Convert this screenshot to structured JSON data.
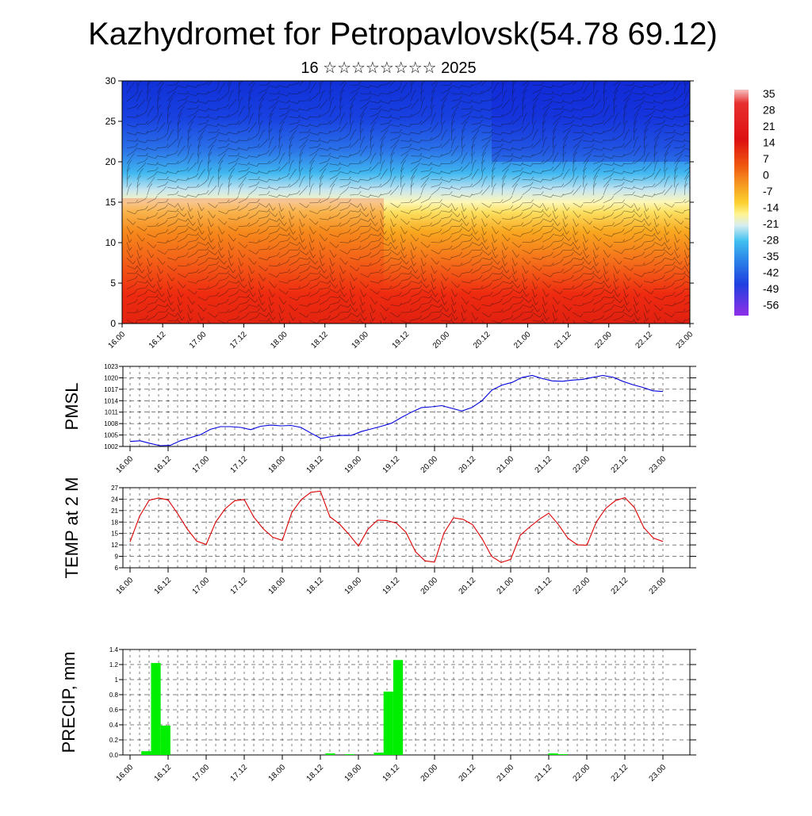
{
  "title": "Kazhydromet for Petropavlovsk(54.78 69.12)",
  "subtitle": "16 ☆☆☆☆☆☆☆☆ 2025",
  "colors": {
    "pmsl_line": "#0000dd",
    "temp_line": "#dd0000",
    "precip_bar": "#00ee00"
  },
  "chart_data": [
    {
      "id": "cross_section",
      "type": "heatmap",
      "title": "",
      "xlabel": "",
      "ylabel": "",
      "x_ticks": [
        "16.00",
        "16.12",
        "17.00",
        "17.12",
        "18.00",
        "18.12",
        "19.00",
        "19.12",
        "20.00",
        "20.12",
        "21.00",
        "21.12",
        "22.00",
        "22.12",
        "23.00"
      ],
      "ylim": [
        0,
        30
      ],
      "y_ticks": [
        0,
        5,
        10,
        15,
        20,
        25,
        30
      ],
      "colorbar": {
        "labels": [
          "35",
          "28",
          "21",
          "14",
          "7",
          "0",
          "-7",
          "-14",
          "-21",
          "-28",
          "-35",
          "-42",
          "-49",
          "-56"
        ],
        "placement": "right"
      },
      "overlay": "wind barbs"
    },
    {
      "id": "pmsl",
      "type": "line",
      "title": "",
      "ylabel": "PMSL",
      "xlabel": "",
      "ylim": [
        1002,
        1023
      ],
      "y_ticks": [
        1002,
        1005,
        1008,
        1011,
        1014,
        1017,
        1020,
        1023
      ],
      "grid": true,
      "x_ticks": [
        "16.00",
        "16.12",
        "17.00",
        "17.12",
        "18.00",
        "18.12",
        "19.00",
        "19.12",
        "20.00",
        "20.12",
        "21.00",
        "21.12",
        "22.00",
        "22.12",
        "23.00"
      ],
      "series": [
        {
          "values": [
            1003.3,
            1003.5,
            1002.8,
            1002.2,
            1002.3,
            1003.5,
            1004.3,
            1005.1,
            1006.5,
            1007.2,
            1007.2,
            1007.0,
            1006.4,
            1007.3,
            1007.6,
            1007.4,
            1007.5,
            1007.0,
            1005.5,
            1004.1,
            1004.6,
            1004.9,
            1004.9,
            1005.9,
            1006.6,
            1007.3,
            1008.1,
            1009.6,
            1011.0,
            1012.2,
            1012.4,
            1012.7,
            1012.0,
            1011.3,
            1012.2,
            1014.0,
            1016.8,
            1018.1,
            1018.8,
            1020.1,
            1020.6,
            1019.8,
            1019.2,
            1019.1,
            1019.4,
            1019.6,
            1020.1,
            1020.6,
            1020.2,
            1019.1,
            1018.2,
            1017.5,
            1016.6,
            1016.4
          ]
        }
      ]
    },
    {
      "id": "temp2m",
      "type": "line",
      "title": "",
      "ylabel": "TEMP at 2 M",
      "xlabel": "",
      "ylim": [
        6,
        27
      ],
      "y_ticks": [
        6,
        9,
        12,
        15,
        18,
        21,
        24,
        27
      ],
      "grid": true,
      "x_ticks": [
        "16.00",
        "16.12",
        "17.00",
        "17.12",
        "18.00",
        "18.12",
        "19.00",
        "19.12",
        "20.00",
        "20.12",
        "21.00",
        "21.12",
        "22.00",
        "22.12",
        "23.00"
      ],
      "series": [
        {
          "values": [
            12.8,
            19.5,
            23.7,
            24.3,
            23.8,
            20.2,
            16.2,
            13.0,
            12.1,
            18.0,
            21.5,
            23.6,
            23.9,
            19.3,
            16.2,
            14.0,
            13.2,
            20.5,
            23.9,
            25.8,
            26.1,
            19.4,
            17.5,
            14.8,
            11.7,
            16.1,
            18.5,
            18.4,
            17.7,
            15.3,
            10.2,
            7.8,
            7.5,
            15.2,
            19.1,
            18.7,
            17.3,
            13.6,
            9.0,
            7.4,
            8.2,
            14.5,
            16.7,
            18.7,
            20.3,
            17.4,
            13.8,
            12.0,
            11.9,
            18.0,
            21.6,
            23.6,
            24.4,
            21.8,
            16.5,
            13.8,
            12.9
          ]
        }
      ]
    },
    {
      "id": "precip",
      "type": "bar",
      "title": "",
      "ylabel": "PRECIP, mm",
      "xlabel": "",
      "ylim": [
        0,
        1.4
      ],
      "y_ticks": [
        "0.0",
        "0.2",
        "0.4",
        "0.6",
        "0.8",
        "1",
        "1.2",
        "1.4"
      ],
      "grid": true,
      "x_ticks": [
        "16.00",
        "16.12",
        "17.00",
        "17.12",
        "18.00",
        "18.12",
        "19.00",
        "19.12",
        "20.00",
        "20.12",
        "21.00",
        "21.12",
        "22.00",
        "22.12",
        "23.00"
      ],
      "series": [
        {
          "values": [
            0,
            0.05,
            1.22,
            0.39,
            0,
            0,
            0,
            0,
            0,
            0,
            0,
            0,
            0,
            0,
            0,
            0,
            0,
            0,
            0,
            0,
            0.02,
            0,
            0.01,
            0,
            0,
            0.03,
            0.84,
            1.26,
            0,
            0,
            0,
            0,
            0,
            0,
            0,
            0,
            0,
            0,
            0,
            0,
            0,
            0,
            0,
            0.02,
            0.01,
            0,
            0,
            0,
            0,
            0,
            0,
            0,
            0,
            0,
            0,
            0
          ]
        }
      ]
    }
  ]
}
